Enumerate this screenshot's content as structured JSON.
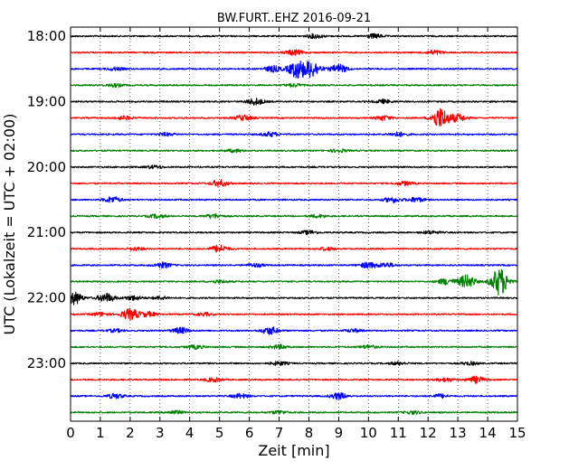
{
  "chart_data": {
    "type": "line",
    "title": "BW.FURT..EHZ 2016-09-21",
    "xlabel": "Zeit  [min]",
    "ylabel": "UTC (Lokalzeit = UTC + 02:00)",
    "xlim": [
      0,
      15
    ],
    "x_ticks": [
      "0",
      "1",
      "2",
      "3",
      "4",
      "5",
      "6",
      "7",
      "8",
      "9",
      "10",
      "11",
      "12",
      "13",
      "14",
      "15"
    ],
    "y_ticks": [
      "18:00",
      "19:00",
      "20:00",
      "21:00",
      "22:00",
      "23:00"
    ],
    "grid": "vertical dotted",
    "traces_per_hour": 4,
    "minutes_per_trace": 15,
    "colors": [
      "#000000",
      "#ff0000",
      "#0000ff",
      "#008000"
    ],
    "series": [
      {
        "start": "18:00",
        "color": "#000000",
        "events": [
          [
            8.2,
            0.14
          ],
          [
            10.2,
            0.14
          ]
        ]
      },
      {
        "start": "18:15",
        "color": "#ff0000",
        "events": [
          [
            7.5,
            0.18
          ],
          [
            12.2,
            0.14
          ]
        ]
      },
      {
        "start": "18:30",
        "color": "#0000ff",
        "events": [
          [
            7.6,
            0.6
          ],
          [
            8.1,
            0.55
          ],
          [
            9.0,
            0.28
          ],
          [
            6.8,
            0.2
          ],
          [
            1.5,
            0.1
          ]
        ]
      },
      {
        "start": "18:45",
        "color": "#008000",
        "events": [
          [
            1.5,
            0.1
          ],
          [
            7.5,
            0.1
          ]
        ]
      },
      {
        "start": "19:00",
        "color": "#000000",
        "events": [
          [
            6.2,
            0.22
          ],
          [
            10.5,
            0.12
          ]
        ]
      },
      {
        "start": "19:15",
        "color": "#ff0000",
        "events": [
          [
            12.4,
            0.7
          ],
          [
            13.0,
            0.25
          ],
          [
            1.8,
            0.12
          ],
          [
            5.8,
            0.18
          ],
          [
            10.5,
            0.15
          ]
        ]
      },
      {
        "start": "19:30",
        "color": "#0000ff",
        "events": [
          [
            6.7,
            0.15
          ],
          [
            11.0,
            0.14
          ],
          [
            3.2,
            0.1
          ]
        ]
      },
      {
        "start": "19:45",
        "color": "#008000",
        "events": [
          [
            5.5,
            0.1
          ],
          [
            9.0,
            0.1
          ]
        ]
      },
      {
        "start": "20:00",
        "color": "#000000",
        "events": [
          [
            2.8,
            0.1
          ]
        ]
      },
      {
        "start": "20:15",
        "color": "#ff0000",
        "events": [
          [
            5.0,
            0.22
          ],
          [
            11.2,
            0.13
          ]
        ]
      },
      {
        "start": "20:30",
        "color": "#0000ff",
        "events": [
          [
            1.4,
            0.2
          ],
          [
            10.8,
            0.18
          ],
          [
            11.6,
            0.15
          ]
        ]
      },
      {
        "start": "20:45",
        "color": "#008000",
        "events": [
          [
            2.9,
            0.12
          ],
          [
            4.8,
            0.14
          ],
          [
            8.3,
            0.1
          ]
        ]
      },
      {
        "start": "21:00",
        "color": "#000000",
        "events": [
          [
            8.0,
            0.12
          ],
          [
            12.1,
            0.1
          ]
        ]
      },
      {
        "start": "21:15",
        "color": "#ff0000",
        "events": [
          [
            5.0,
            0.24
          ],
          [
            2.2,
            0.1
          ],
          [
            8.6,
            0.1
          ]
        ]
      },
      {
        "start": "21:30",
        "color": "#0000ff",
        "events": [
          [
            3.1,
            0.18
          ],
          [
            10.0,
            0.2
          ],
          [
            10.6,
            0.15
          ],
          [
            6.2,
            0.12
          ]
        ]
      },
      {
        "start": "21:45",
        "color": "#008000",
        "events": [
          [
            14.4,
            0.95
          ],
          [
            13.3,
            0.45
          ],
          [
            12.6,
            0.2
          ],
          [
            5.0,
            0.1
          ]
        ]
      },
      {
        "start": "22:00",
        "color": "#000000",
        "events": [
          [
            0.1,
            0.45
          ],
          [
            1.2,
            0.3
          ],
          [
            2.1,
            0.15
          ],
          [
            3.0,
            0.1
          ]
        ]
      },
      {
        "start": "22:15",
        "color": "#ff0000",
        "events": [
          [
            2.0,
            0.38
          ],
          [
            2.6,
            0.15
          ],
          [
            1.0,
            0.12
          ],
          [
            4.5,
            0.1
          ]
        ]
      },
      {
        "start": "22:30",
        "color": "#0000ff",
        "events": [
          [
            3.7,
            0.2
          ],
          [
            6.7,
            0.25
          ],
          [
            1.5,
            0.1
          ],
          [
            9.5,
            0.1
          ]
        ]
      },
      {
        "start": "22:45",
        "color": "#008000",
        "events": [
          [
            4.2,
            0.12
          ],
          [
            7.0,
            0.14
          ],
          [
            10.0,
            0.12
          ]
        ]
      },
      {
        "start": "23:00",
        "color": "#000000",
        "events": [
          [
            7.0,
            0.12
          ],
          [
            11.0,
            0.1
          ],
          [
            13.4,
            0.1
          ]
        ]
      },
      {
        "start": "23:15",
        "color": "#ff0000",
        "events": [
          [
            4.8,
            0.13
          ],
          [
            13.6,
            0.22
          ],
          [
            12.6,
            0.12
          ]
        ]
      },
      {
        "start": "23:30",
        "color": "#0000ff",
        "events": [
          [
            9.0,
            0.22
          ],
          [
            1.5,
            0.16
          ],
          [
            5.7,
            0.15
          ],
          [
            12.4,
            0.12
          ]
        ]
      },
      {
        "start": "23:45",
        "color": "#008000",
        "events": [
          [
            3.5,
            0.12
          ],
          [
            7.0,
            0.12
          ],
          [
            11.5,
            0.1
          ]
        ]
      }
    ]
  }
}
